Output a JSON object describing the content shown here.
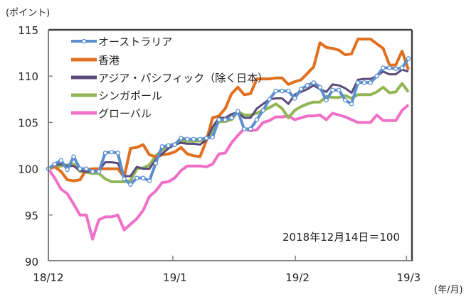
{
  "chart_data": {
    "type": "line",
    "title": "",
    "ylabel": "(ポイント)",
    "xlabel": "(年/月)",
    "ylim": [
      90,
      115
    ],
    "yticks": [
      90,
      95,
      100,
      105,
      110,
      115
    ],
    "xlim": [
      0,
      57
    ],
    "x_unit": "trading day index from 2018-12-14",
    "xticks": [
      {
        "label": "18/12",
        "x": 0
      },
      {
        "label": "19/1",
        "x": 19.7
      },
      {
        "label": "19/2",
        "x": 39.1
      },
      {
        "label": "19/3",
        "x": 56.7
      }
    ],
    "annotation": "2018年12月14日＝100",
    "legend_position": "top-left",
    "grid": false,
    "series": [
      {
        "name": "オーストラリア",
        "color": "#5b8fd0",
        "markers": true,
        "values": [
          100,
          100.5,
          100.9,
          99.9,
          101.3,
          100,
          100,
          99.7,
          99.7,
          101.7,
          101.8,
          101.7,
          98.9,
          98.3,
          99,
          99,
          98.7,
          100.6,
          102.4,
          102.5,
          102.6,
          103.3,
          103.2,
          103.2,
          103.2,
          103.3,
          103.4,
          105.3,
          105.3,
          105.5,
          106.2,
          104.3,
          104.3,
          105.3,
          106.3,
          107.5,
          108.4,
          108.4,
          108.4,
          107.6,
          108.6,
          109,
          109.3,
          108.8,
          107.4,
          108.5,
          108.5,
          107.4,
          107,
          109.3,
          109.3,
          109.3,
          110,
          110.9,
          110.9,
          110.8,
          110.9,
          111.9
        ]
      },
      {
        "name": "香港",
        "color": "#e07020",
        "markers": false,
        "values": [
          100,
          100.2,
          99.7,
          98.8,
          98.7,
          98.8,
          99.9,
          100,
          100,
          100,
          100,
          100,
          99.1,
          102.2,
          102.3,
          102.6,
          101.5,
          101.3,
          101.5,
          101.6,
          101.8,
          102.3,
          101.6,
          101.4,
          101.3,
          103,
          105.5,
          105.7,
          106.5,
          108.1,
          108.8,
          108,
          108.1,
          109.7,
          109.7,
          109.7,
          109.8,
          109.8,
          109.1,
          109.4,
          109.6,
          110.3,
          111,
          113.6,
          113.1,
          113,
          112.8,
          112.3,
          112.4,
          114,
          114,
          114,
          113.5,
          113,
          111.2,
          111.2,
          112.7,
          110.7
        ]
      },
      {
        "name": "アジア・パシフィック（除く日本）",
        "color": "#5a4a7a",
        "markers": false,
        "values": [
          100,
          100.4,
          100.5,
          100.3,
          100.3,
          99.8,
          99.7,
          99.7,
          99.8,
          100.7,
          100.7,
          100.6,
          99.2,
          99.2,
          100.2,
          100,
          100,
          101,
          101.6,
          102.2,
          102.6,
          102.8,
          102.7,
          102.7,
          102.6,
          103.1,
          104.5,
          105.5,
          105.5,
          105.9,
          106.1,
          105.5,
          105.5,
          106.5,
          107,
          107.5,
          107.6,
          107.6,
          107,
          108,
          108.3,
          108.6,
          109,
          108.6,
          108.3,
          109.1,
          109,
          108.7,
          108.2,
          109.6,
          109.7,
          109.7,
          110,
          110.5,
          110.2,
          110.2,
          110.7,
          110.5
        ]
      },
      {
        "name": "シンガポール",
        "color": "#92b556",
        "markers": false,
        "values": [
          100,
          100.2,
          100.3,
          100.4,
          100.5,
          99.7,
          99.6,
          99.5,
          99.5,
          98.9,
          98.6,
          98.6,
          98.6,
          98.7,
          100,
          100.1,
          100.4,
          101.4,
          102,
          102.5,
          102.7,
          103,
          103,
          103,
          103,
          103.1,
          104,
          105.1,
          105.1,
          105.3,
          106.2,
          105.8,
          105.8,
          106,
          106.3,
          106.6,
          107,
          106.5,
          105.5,
          106.3,
          106.7,
          107,
          107.2,
          107.2,
          107.8,
          107.7,
          107.7,
          107.9,
          107.6,
          108,
          108,
          108,
          108.3,
          108.8,
          108.2,
          108.3,
          109.2,
          108.3
        ]
      },
      {
        "name": "グローバル",
        "color": "#f070c8",
        "markers": false,
        "values": [
          100,
          99,
          97.8,
          97.3,
          96.2,
          95,
          95,
          92.4,
          94.5,
          94.8,
          94.8,
          95,
          93.4,
          94,
          94.6,
          95.5,
          97,
          97.6,
          98.5,
          98.6,
          99,
          99.8,
          100.3,
          100.3,
          100.3,
          100.2,
          100.5,
          101.6,
          101.7,
          102.8,
          103.6,
          104.3,
          104.1,
          104.2,
          105,
          105.2,
          105.6,
          105.6,
          105.7,
          105.3,
          105.5,
          105.7,
          105.7,
          105.8,
          105.3,
          106,
          105.8,
          105.6,
          105.3,
          105,
          105,
          105,
          105.8,
          105.2,
          105.2,
          105.2,
          106.3,
          106.9
        ]
      }
    ]
  }
}
